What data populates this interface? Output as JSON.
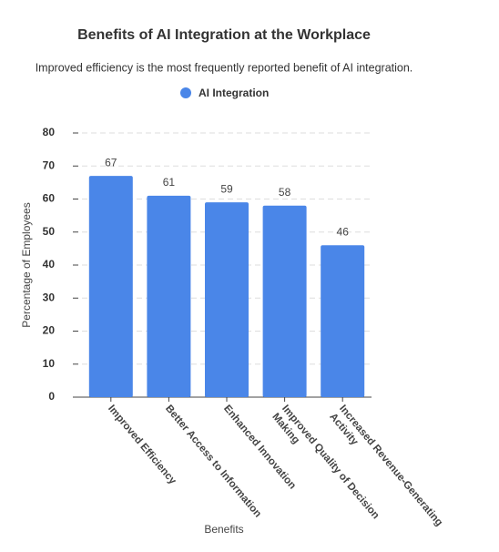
{
  "chart_data": {
    "type": "bar",
    "title": "Benefits of AI Integration at the Workplace",
    "subtitle": "Improved efficiency is the most frequently reported benefit of AI integration.",
    "x_label": "Benefits",
    "y_label": "Percentage of Employees",
    "categories": [
      "Improved Efficiency",
      "Better Access to Information",
      "Enhanced Innovation",
      "Improved Quality of Decision Making",
      "Increased Revenue-Generating Activity"
    ],
    "series": [
      {
        "name": "AI Integration",
        "color": "#4a86e8",
        "values": [
          67,
          61,
          59,
          58,
          46
        ]
      }
    ],
    "ylim": [
      0,
      80
    ],
    "yticks": [
      0,
      10,
      20,
      30,
      40,
      50,
      60,
      70,
      80
    ],
    "grid": true
  }
}
